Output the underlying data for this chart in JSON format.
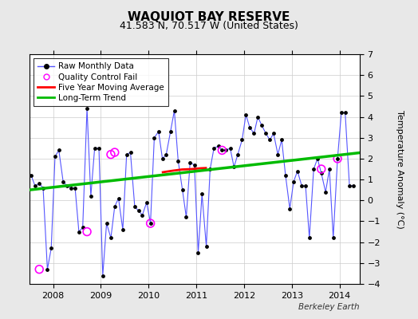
{
  "title": "WAQUIOT BAY RESERVE",
  "subtitle": "41.583 N, 70.517 W (United States)",
  "ylabel": "Temperature Anomaly (°C)",
  "watermark": "Berkeley Earth",
  "background_color": "#e8e8e8",
  "plot_bg_color": "#ffffff",
  "ylim": [
    -4,
    7
  ],
  "xlim": [
    2007.5,
    2014.42
  ],
  "yticks": [
    -4,
    -3,
    -2,
    -1,
    0,
    1,
    2,
    3,
    4,
    5,
    6,
    7
  ],
  "xticks": [
    2008,
    2009,
    2010,
    2011,
    2012,
    2013,
    2014
  ],
  "raw_x": [
    2007.54,
    2007.62,
    2007.71,
    2007.79,
    2007.88,
    2007.96,
    2008.04,
    2008.12,
    2008.21,
    2008.29,
    2008.37,
    2008.46,
    2008.54,
    2008.62,
    2008.71,
    2008.79,
    2008.87,
    2008.96,
    2009.04,
    2009.12,
    2009.21,
    2009.29,
    2009.37,
    2009.46,
    2009.54,
    2009.62,
    2009.71,
    2009.79,
    2009.87,
    2009.96,
    2010.04,
    2010.12,
    2010.21,
    2010.29,
    2010.37,
    2010.46,
    2010.54,
    2010.62,
    2010.71,
    2010.79,
    2010.87,
    2010.96,
    2011.04,
    2011.12,
    2011.21,
    2011.29,
    2011.37,
    2011.46,
    2011.54,
    2011.62,
    2011.71,
    2011.79,
    2011.87,
    2011.96,
    2012.04,
    2012.12,
    2012.21,
    2012.29,
    2012.37,
    2012.46,
    2012.54,
    2012.62,
    2012.71,
    2012.79,
    2012.87,
    2012.96,
    2013.04,
    2013.12,
    2013.21,
    2013.29,
    2013.37,
    2013.46,
    2013.54,
    2013.62,
    2013.71,
    2013.79,
    2013.87,
    2013.96,
    2014.04,
    2014.12,
    2014.21,
    2014.29
  ],
  "raw_y": [
    1.2,
    0.7,
    0.8,
    0.6,
    -3.3,
    -2.3,
    2.1,
    2.4,
    0.9,
    0.7,
    0.6,
    0.6,
    -1.5,
    -1.3,
    4.4,
    0.2,
    2.5,
    2.5,
    -3.6,
    -1.1,
    -1.8,
    -0.3,
    0.1,
    -1.4,
    2.2,
    2.3,
    -0.3,
    -0.5,
    -0.7,
    -0.1,
    -1.1,
    3.0,
    3.3,
    2.0,
    2.2,
    3.3,
    4.3,
    1.9,
    0.5,
    -0.8,
    1.8,
    1.7,
    -2.5,
    0.3,
    -2.2,
    1.5,
    2.5,
    2.6,
    2.4,
    2.4,
    2.5,
    1.6,
    2.2,
    2.9,
    4.1,
    3.5,
    3.2,
    4.0,
    3.6,
    3.2,
    2.9,
    3.2,
    2.2,
    2.9,
    1.2,
    -0.4,
    0.9,
    1.4,
    0.7,
    0.7,
    -1.8,
    1.5,
    2.0,
    1.3,
    0.4,
    1.5,
    -1.8,
    2.0,
    4.2,
    4.2,
    0.7,
    0.7
  ],
  "qc_fail_x": [
    2007.71,
    2008.71,
    2009.21,
    2009.29,
    2010.04,
    2011.54,
    2013.62,
    2013.96
  ],
  "qc_fail_y": [
    -3.3,
    -1.5,
    2.2,
    2.3,
    -1.1,
    2.4,
    1.5,
    2.0
  ],
  "five_year_ma_x": [
    2010.3,
    2010.5,
    2010.7,
    2010.9,
    2011.0,
    2011.1,
    2011.2
  ],
  "five_year_ma_y": [
    1.35,
    1.42,
    1.48,
    1.5,
    1.52,
    1.54,
    1.55
  ],
  "trend_x": [
    2007.5,
    2014.42
  ],
  "trend_y": [
    0.5,
    2.28
  ],
  "line_color": "#5555ff",
  "dot_color": "#000000",
  "qc_color": "#ff00ff",
  "ma_color": "#ff0000",
  "trend_color": "#00bb00",
  "title_fontsize": 11,
  "subtitle_fontsize": 9,
  "tick_fontsize": 8,
  "legend_fontsize": 7.5
}
